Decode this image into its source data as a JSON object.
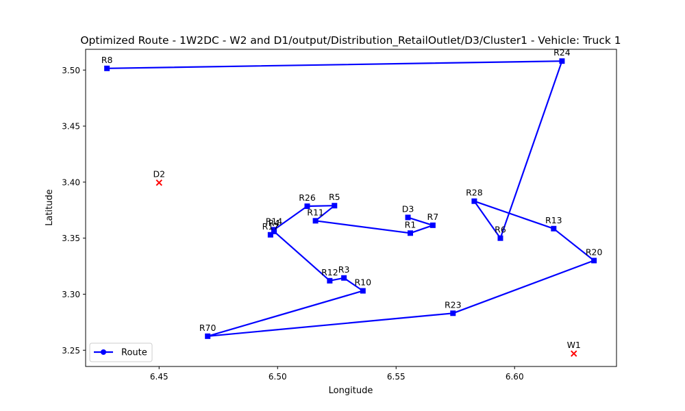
{
  "chart_data": {
    "type": "line",
    "title": "Optimized Route - 1W2DC - W2 and D1/output/Distribution_RetailOutlet/D3/Cluster1 - Vehicle: Truck 1",
    "xlabel": "Longitude",
    "ylabel": "Latitude",
    "xlim": [
      6.419,
      6.643
    ],
    "ylim": [
      3.2355,
      3.5185
    ],
    "xticks": [
      "6.45",
      "6.50",
      "6.55",
      "6.60"
    ],
    "xtick_values": [
      6.45,
      6.5,
      6.55,
      6.6
    ],
    "yticks": [
      "3.25",
      "3.30",
      "3.35",
      "3.40",
      "3.45",
      "3.50"
    ],
    "ytick_values": [
      3.25,
      3.3,
      3.35,
      3.4,
      3.45,
      3.5
    ],
    "grid": false,
    "legend": {
      "placement": "lower-left",
      "entries": [
        "Route"
      ]
    },
    "route": {
      "name": "Route",
      "color": "#0000ff",
      "points": [
        {
          "label": "D3",
          "x": 6.555,
          "y": 3.3685
        },
        {
          "label": "R7",
          "x": 6.5655,
          "y": 3.3615
        },
        {
          "label": "R1",
          "x": 6.556,
          "y": 3.3545
        },
        {
          "label": "R11",
          "x": 6.516,
          "y": 3.3655
        },
        {
          "label": "R5",
          "x": 6.524,
          "y": 3.379
        },
        {
          "label": "R26",
          "x": 6.5125,
          "y": 3.3785
        },
        {
          "label": "R14",
          "x": 6.4985,
          "y": 3.3575
        },
        {
          "label": "R17",
          "x": 6.497,
          "y": 3.353
        },
        {
          "label": "R4",
          "x": 6.4985,
          "y": 3.356
        },
        {
          "label": "R12",
          "x": 6.522,
          "y": 3.312
        },
        {
          "label": "R3",
          "x": 6.528,
          "y": 3.3145
        },
        {
          "label": "R10",
          "x": 6.536,
          "y": 3.303
        },
        {
          "label": "R70",
          "x": 6.4705,
          "y": 3.2625
        },
        {
          "label": "R23",
          "x": 6.574,
          "y": 3.283
        },
        {
          "label": "R20",
          "x": 6.6335,
          "y": 3.33
        },
        {
          "label": "R13",
          "x": 6.6165,
          "y": 3.3585
        },
        {
          "label": "R28",
          "x": 6.583,
          "y": 3.383
        },
        {
          "label": "R6",
          "x": 6.594,
          "y": 3.35
        },
        {
          "label": "R24",
          "x": 6.62,
          "y": 3.508
        },
        {
          "label": "R8",
          "x": 6.428,
          "y": 3.5015
        }
      ]
    },
    "depots": {
      "color": "#ff0000",
      "marker": "x",
      "points": [
        {
          "label": "D2",
          "x": 6.45,
          "y": 3.3995
        },
        {
          "label": "W1",
          "x": 6.625,
          "y": 3.247
        }
      ]
    }
  }
}
